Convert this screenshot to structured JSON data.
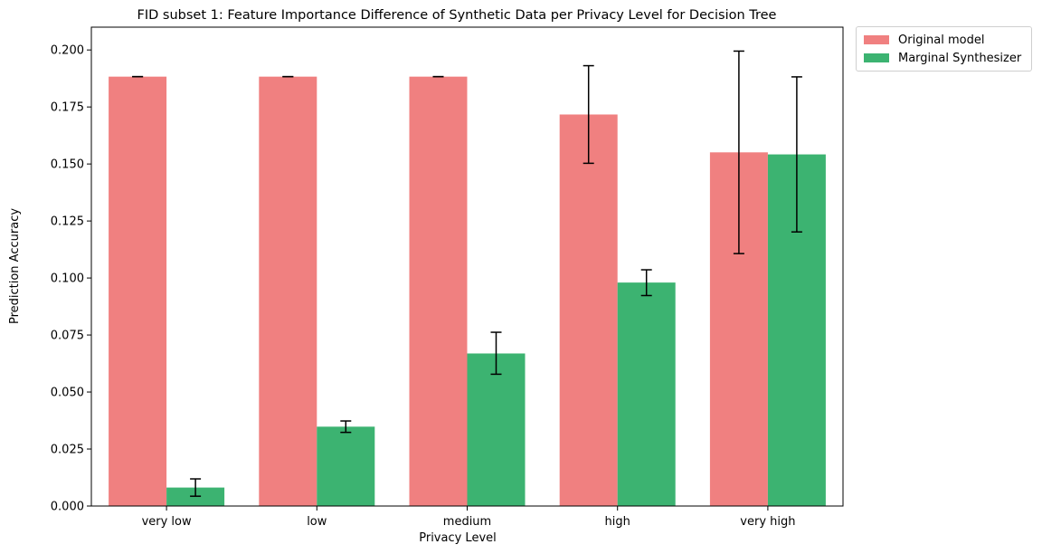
{
  "chart_data": {
    "type": "bar",
    "title": "FID subset 1: Feature Importance Difference of Synthetic Data per Privacy Level for Decision Tree",
    "xlabel": "Privacy Level",
    "ylabel": "Prediction Accuracy",
    "categories": [
      "very low",
      "low",
      "medium",
      "high",
      "very high"
    ],
    "ylim": [
      0,
      0.21
    ],
    "yticks": [
      "0.000",
      "0.025",
      "0.050",
      "0.075",
      "0.100",
      "0.125",
      "0.150",
      "0.175",
      "0.200"
    ],
    "grid": false,
    "legend_position": "outside top-right",
    "series": [
      {
        "name": "Original model",
        "color": "#f08080",
        "values": [
          0.1883,
          0.1883,
          0.1883,
          0.1717,
          0.1551
        ],
        "error_low": [
          0.1883,
          0.1883,
          0.1883,
          0.1503,
          0.1107
        ],
        "error_high": [
          0.1883,
          0.1883,
          0.1883,
          0.1931,
          0.1995
        ]
      },
      {
        "name": "Marginal Synthesizer",
        "color": "#3cb371",
        "values": [
          0.0081,
          0.0348,
          0.0669,
          0.098,
          0.1542
        ],
        "error_low": [
          0.0043,
          0.0323,
          0.0578,
          0.0923,
          0.1202
        ],
        "error_high": [
          0.0119,
          0.0373,
          0.0762,
          0.1036,
          0.1882
        ]
      }
    ]
  }
}
